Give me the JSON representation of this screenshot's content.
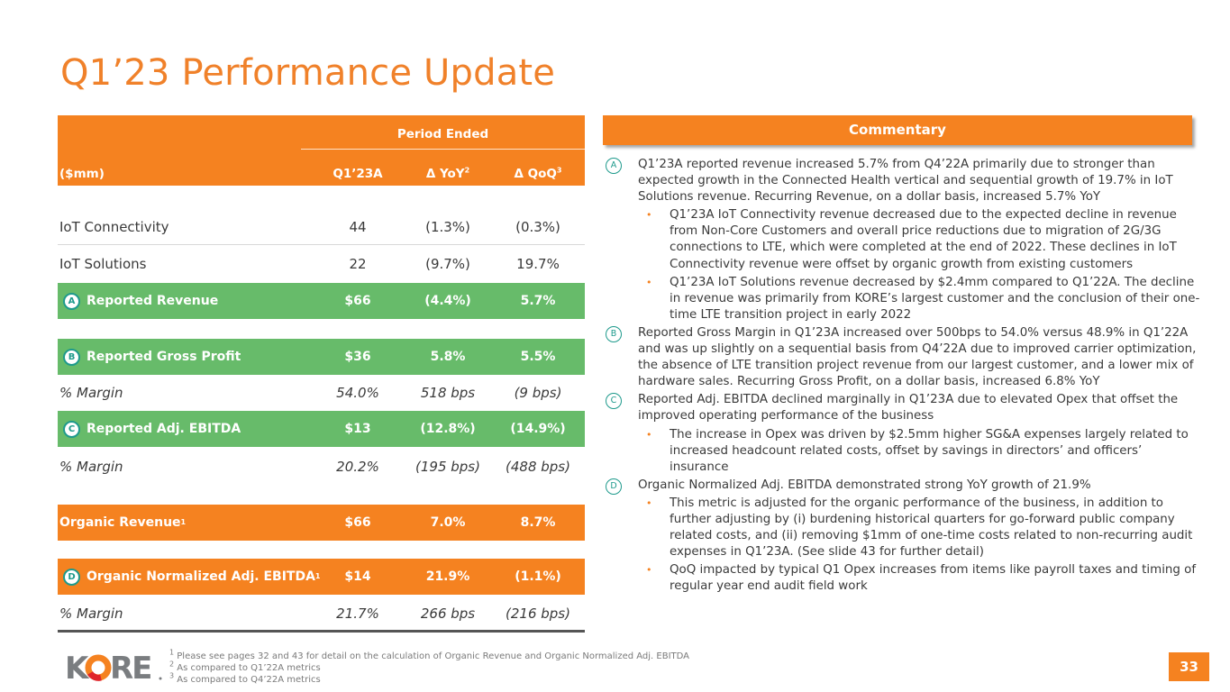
{
  "title": "Q1’23 Performance Update",
  "colors": {
    "accent": "#f58220",
    "green": "#67bb6a",
    "teal": "#1e9a8c"
  },
  "table": {
    "period_header": "Period Ended",
    "unit": "($mm)",
    "columns": [
      {
        "label": "Q1’23A",
        "sup": ""
      },
      {
        "label": "Δ YoY",
        "sup": "2"
      },
      {
        "label": "Δ QoQ",
        "sup": "3"
      }
    ],
    "rows": [
      {
        "label": "IoT Connectivity",
        "values": [
          "44",
          "(1.3%)",
          "(0.3%)"
        ]
      },
      {
        "label": "IoT Solutions",
        "values": [
          "22",
          "(9.7%)",
          "19.7%"
        ]
      },
      {
        "badge": "A",
        "label": "Reported Revenue",
        "values": [
          "$66",
          "(4.4%)",
          "5.7%"
        ]
      },
      {
        "badge": "B",
        "label": "Reported Gross Profit",
        "values": [
          "$36",
          "5.8%",
          "5.5%"
        ]
      },
      {
        "label": "% Margin",
        "values": [
          "54.0%",
          "518 bps",
          "(9 bps)"
        ]
      },
      {
        "badge": "C",
        "label": "Reported Adj. EBITDA",
        "values": [
          "$13",
          "(12.8%)",
          "(14.9%)"
        ]
      },
      {
        "label": "% Margin",
        "values": [
          "20.2%",
          "(195 bps)",
          "(488 bps)"
        ]
      },
      {
        "label": "Organic Revenue",
        "sup": "1",
        "values": [
          "$66",
          "7.0%",
          "8.7%"
        ]
      },
      {
        "badge": "D",
        "label": "Organic Normalized Adj. EBITDA",
        "sup": "1",
        "values": [
          "$14",
          "21.9%",
          "(1.1%)"
        ]
      },
      {
        "label": "% Margin",
        "values": [
          "21.7%",
          "266 bps",
          "(216 bps)"
        ]
      }
    ]
  },
  "commentary": {
    "header": "Commentary",
    "items": [
      {
        "badge": "A",
        "text": "Q1’23A reported revenue increased 5.7% from Q4’22A primarily due to stronger than expected growth in the Connected Health vertical and sequential growth of 19.7% in IoT Solutions revenue. Recurring Revenue, on a dollar basis, increased 5.7% YoY",
        "bullets": [
          "Q1’23A IoT Connectivity revenue decreased due to the expected decline in revenue from Non-Core Customers and overall price reductions due to migration of 2G/3G connections to LTE, which were completed at the end of 2022. These declines in IoT Connectivity revenue were offset by organic growth from existing customers",
          "Q1’23A IoT Solutions revenue decreased by $2.4mm compared to Q1’22A. The decline in revenue was primarily from KORE’s largest customer and the conclusion of their one-time LTE transition project in early 2022"
        ]
      },
      {
        "badge": "B",
        "text": "Reported Gross Margin in Q1’23A increased over 500bps to 54.0% versus 48.9% in Q1’22A and was up slightly on a sequential basis from Q4’22A due to improved carrier optimization, the absence of LTE transition project revenue from our largest customer, and a lower mix of hardware sales. Recurring Gross Profit, on a dollar basis, increased 6.8% YoY",
        "bullets": []
      },
      {
        "badge": "C",
        "text": "Reported Adj. EBITDA declined marginally in Q1’23A due to elevated Opex that offset the improved operating performance of the business",
        "bullets": [
          "The increase in Opex was driven by $2.5mm higher SG&A expenses largely related to increased headcount related costs, offset by savings in directors’ and officers’ insurance"
        ]
      },
      {
        "badge": "D",
        "text": "Organic Normalized Adj. EBITDA demonstrated strong YoY growth of 21.9%",
        "bullets": [
          "This metric is adjusted for the organic performance of the business, in addition to further adjusting by (i) burdening historical quarters for go-forward public company related costs, and (ii) removing $1mm of one-time costs related to non-recurring audit expenses in Q1’23A. (See slide 43 for further detail)",
          "QoQ impacted by typical Q1 Opex increases from items like payroll taxes and timing of regular year end audit field work"
        ]
      }
    ]
  },
  "footnotes": [
    {
      "sup": "1",
      "text": "Please see pages 32 and 43 for detail on the calculation of Organic Revenue and Organic Normalized Adj. EBITDA"
    },
    {
      "sup": "2",
      "text": "As compared to Q1’22A metrics"
    },
    {
      "sup": "3",
      "text": "As compared to Q4’22A metrics"
    }
  ],
  "logo_text": "KORE",
  "page_number": "33"
}
